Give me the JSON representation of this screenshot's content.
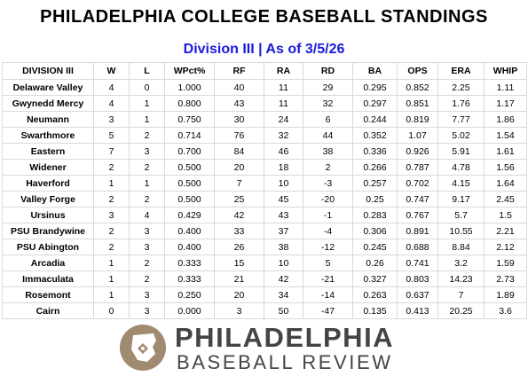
{
  "title": "PHILADELPHIA COLLEGE BASEBALL STANDINGS",
  "subtitle": "Division III | As of 3/5/26",
  "table": {
    "headers": [
      "DIVISION III",
      "W",
      "L",
      "WPct%",
      "RF",
      "RA",
      "RD",
      "BA",
      "OPS",
      "ERA",
      "WHIP"
    ],
    "rows": [
      [
        "Delaware Valley",
        "4",
        "0",
        "1.000",
        "40",
        "11",
        "29",
        "0.295",
        "0.852",
        "2.25",
        "1.11"
      ],
      [
        "Gwynedd Mercy",
        "4",
        "1",
        "0.800",
        "43",
        "11",
        "32",
        "0.297",
        "0.851",
        "1.76",
        "1.17"
      ],
      [
        "Neumann",
        "3",
        "1",
        "0.750",
        "30",
        "24",
        "6",
        "0.244",
        "0.819",
        "7.77",
        "1.86"
      ],
      [
        "Swarthmore",
        "5",
        "2",
        "0.714",
        "76",
        "32",
        "44",
        "0.352",
        "1.07",
        "5.02",
        "1.54"
      ],
      [
        "Eastern",
        "7",
        "3",
        "0.700",
        "84",
        "46",
        "38",
        "0.336",
        "0.926",
        "5.91",
        "1.61"
      ],
      [
        "Widener",
        "2",
        "2",
        "0.500",
        "20",
        "18",
        "2",
        "0.266",
        "0.787",
        "4.78",
        "1.56"
      ],
      [
        "Haverford",
        "1",
        "1",
        "0.500",
        "7",
        "10",
        "-3",
        "0.257",
        "0.702",
        "4.15",
        "1.64"
      ],
      [
        "Valley Forge",
        "2",
        "2",
        "0.500",
        "25",
        "45",
        "-20",
        "0.25",
        "0.747",
        "9.17",
        "2.45"
      ],
      [
        "Ursinus",
        "3",
        "4",
        "0.429",
        "42",
        "43",
        "-1",
        "0.283",
        "0.767",
        "5.7",
        "1.5"
      ],
      [
        "PSU Brandywine",
        "2",
        "3",
        "0.400",
        "33",
        "37",
        "-4",
        "0.306",
        "0.891",
        "10.55",
        "2.21"
      ],
      [
        "PSU Abington",
        "2",
        "3",
        "0.400",
        "26",
        "38",
        "-12",
        "0.245",
        "0.688",
        "8.84",
        "2.12"
      ],
      [
        "Arcadia",
        "1",
        "2",
        "0.333",
        "15",
        "10",
        "5",
        "0.26",
        "0.741",
        "3.2",
        "1.59"
      ],
      [
        "Immaculata",
        "1",
        "2",
        "0.333",
        "21",
        "42",
        "-21",
        "0.327",
        "0.803",
        "14.23",
        "2.73"
      ],
      [
        "Rosemont",
        "1",
        "3",
        "0.250",
        "20",
        "34",
        "-14",
        "0.263",
        "0.637",
        "7",
        "1.89"
      ],
      [
        "Cairn",
        "0",
        "3",
        "0.000",
        "3",
        "50",
        "-47",
        "0.135",
        "0.413",
        "20.25",
        "3.6"
      ]
    ]
  },
  "logo": {
    "line1": "PHILADELPHIA",
    "line2": "BASEBALL REVIEW",
    "icon": "baseball-diamond-state-icon",
    "mark_color": "#a08a70"
  },
  "colors": {
    "subtitle": "#1a1adc",
    "grid": "#d9d9d9",
    "logo_text": "#444444"
  }
}
